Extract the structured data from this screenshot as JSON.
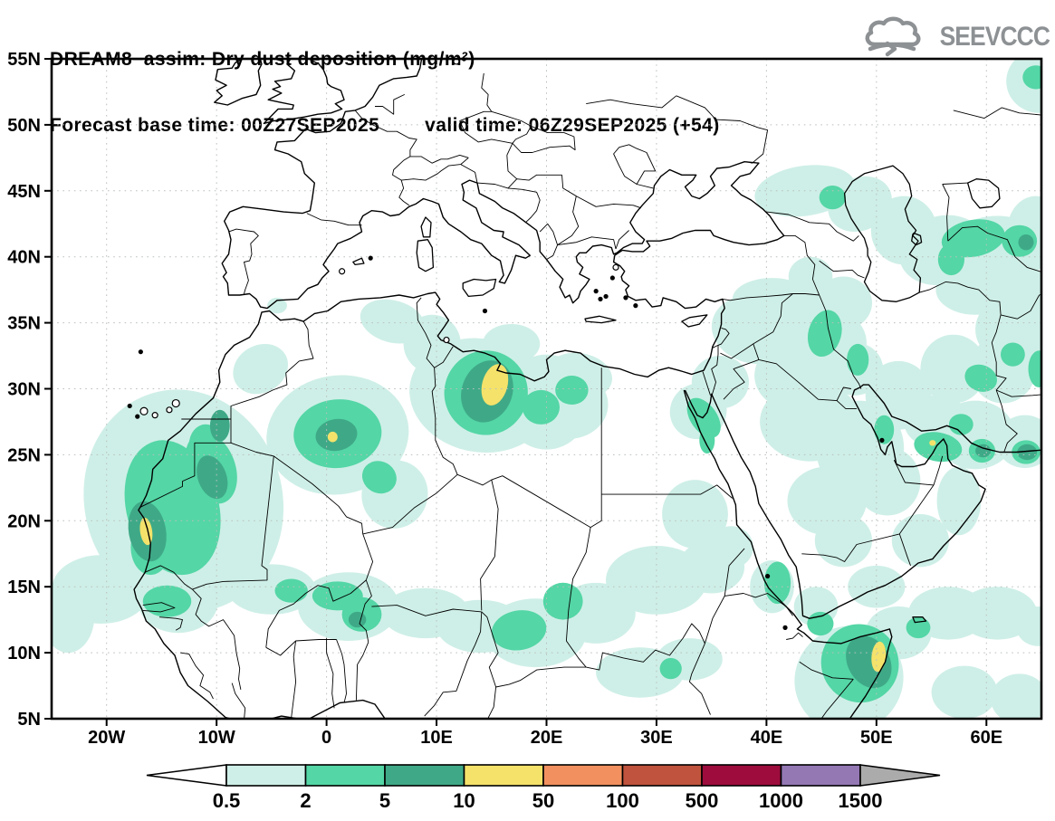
{
  "header": {
    "title_line1": "DREAM8−assim: Dry dust deposition (mg/m²)",
    "forecast_base": "Forecast base time: 00Z27SEP2025",
    "valid_time": "valid time: 06Z29SEP2025 (+54)"
  },
  "logo": {
    "text": "SEEVCCC"
  },
  "chart_data": {
    "type": "heatmap",
    "subtype": "filled-contour-geographic-map",
    "title": "DREAM8−assim: Dry dust deposition (mg/m²)",
    "variable": "Dry dust deposition",
    "units": "mg/m²",
    "forecast_base_time": "00Z27SEP2025",
    "valid_time": "06Z29SEP2025",
    "forecast_hour": "+54",
    "lon_range": [
      -25,
      65
    ],
    "lat_range": [
      5,
      55
    ],
    "grid": {
      "lon_interval": 10,
      "lat_interval": 5,
      "style": "dotted"
    },
    "x_ticks": [
      {
        "value": -20,
        "label": "20W"
      },
      {
        "value": -10,
        "label": "10W"
      },
      {
        "value": 0,
        "label": "0"
      },
      {
        "value": 10,
        "label": "10E"
      },
      {
        "value": 20,
        "label": "20E"
      },
      {
        "value": 30,
        "label": "30E"
      },
      {
        "value": 40,
        "label": "40E"
      },
      {
        "value": 50,
        "label": "50E"
      },
      {
        "value": 60,
        "label": "60E"
      }
    ],
    "y_ticks": [
      {
        "value": 55,
        "label": "55N"
      },
      {
        "value": 50,
        "label": "50N"
      },
      {
        "value": 45,
        "label": "45N"
      },
      {
        "value": 40,
        "label": "40N"
      },
      {
        "value": 35,
        "label": "35N"
      },
      {
        "value": 30,
        "label": "30N"
      },
      {
        "value": 25,
        "label": "25N"
      },
      {
        "value": 20,
        "label": "20N"
      },
      {
        "value": 15,
        "label": "15N"
      },
      {
        "value": 10,
        "label": "10N"
      },
      {
        "value": 5,
        "label": "5N"
      }
    ],
    "colorbar": {
      "boundaries": [
        "0.5",
        "2",
        "5",
        "10",
        "50",
        "100",
        "500",
        "1000",
        "1500"
      ],
      "segment_colors": [
        "#CEEFE7",
        "#54D6A6",
        "#3FA987",
        "#F4E26B",
        "#F2915F",
        "#C0533D",
        "#9D0C3D",
        "#9478B4"
      ],
      "below_color": "#FFFFFF",
      "above_color": "#ABABAB"
    },
    "level_ranges": {
      "level_1": "0.5-2 mg/m²",
      "level_2": "2-5 mg/m²",
      "level_3": "5-10 mg/m²",
      "level_4": "10-50 mg/m²"
    },
    "deposition_regions": {
      "level_1": [
        [
          -13,
          21.5,
          9,
          8.5,
          -15
        ],
        [
          -20.5,
          14.8,
          4.5,
          2.6,
          0
        ],
        [
          -23.5,
          12.8,
          2.4,
          2.8,
          0
        ],
        [
          -6,
          31.5,
          2.6,
          1.8,
          -30
        ],
        [
          6,
          35.1,
          3,
          1.6,
          15
        ],
        [
          9.6,
          33.4,
          2.6,
          2.2,
          0
        ],
        [
          1,
          26.5,
          6.5,
          4.5,
          -10
        ],
        [
          6.2,
          22,
          3,
          2.6,
          20
        ],
        [
          14,
          29.5,
          6.5,
          4.3,
          10
        ],
        [
          20,
          29,
          4,
          3.6,
          0
        ],
        [
          23,
          31,
          3,
          1.7,
          10
        ],
        [
          22,
          28.8,
          3.6,
          2.6,
          0
        ],
        [
          16.8,
          33.4,
          2.6,
          1.5,
          0
        ],
        [
          -13.5,
          13.8,
          3.6,
          2.3,
          0
        ],
        [
          -5,
          14.8,
          4,
          1.9,
          0
        ],
        [
          2,
          13.5,
          4.6,
          2.6,
          0
        ],
        [
          9,
          13,
          4,
          1.9,
          0
        ],
        [
          14,
          12,
          4,
          2,
          0
        ],
        [
          19,
          11.5,
          4.6,
          2.6,
          0
        ],
        [
          24.5,
          13,
          3.6,
          2.3,
          0
        ],
        [
          30,
          15.5,
          4.6,
          2.6,
          0
        ],
        [
          35,
          16.5,
          3,
          2,
          0
        ],
        [
          28.5,
          8.5,
          4,
          1.9,
          0
        ],
        [
          33,
          9.5,
          3,
          1.6,
          0
        ],
        [
          33.5,
          20.5,
          3,
          2.6,
          0
        ],
        [
          36.8,
          18,
          2,
          1.6,
          0
        ],
        [
          33.8,
          28.3,
          2.6,
          2.1,
          -30
        ],
        [
          35.8,
          30.5,
          2.6,
          2,
          0
        ],
        [
          39,
          34.5,
          4,
          2.6,
          10
        ],
        [
          44,
          35.5,
          3,
          2,
          0
        ],
        [
          45.5,
          33.5,
          3.6,
          2.6,
          0
        ],
        [
          48,
          31.5,
          2.6,
          2,
          0
        ],
        [
          42.5,
          31,
          3.6,
          2.6,
          0
        ],
        [
          44,
          27.5,
          4.6,
          3,
          0
        ],
        [
          48.5,
          25.5,
          4,
          3.6,
          0
        ],
        [
          51,
          23,
          3,
          2.6,
          0
        ],
        [
          45.5,
          21.5,
          3.6,
          2.6,
          0
        ],
        [
          47,
          18.5,
          2.6,
          2,
          0
        ],
        [
          54,
          18.5,
          2.6,
          2,
          0
        ],
        [
          57.5,
          21.5,
          2,
          2.6,
          0
        ],
        [
          50,
          15,
          2.6,
          1.6,
          0
        ],
        [
          44.5,
          13.5,
          2,
          1.5,
          0
        ],
        [
          40.5,
          15,
          2,
          2,
          0
        ],
        [
          47.5,
          8,
          5,
          4,
          -30
        ],
        [
          52,
          11.5,
          3,
          2,
          0
        ],
        [
          56.5,
          13,
          3.6,
          2,
          0
        ],
        [
          61,
          13,
          3.6,
          2,
          0
        ],
        [
          64.7,
          12,
          2,
          1.5,
          0
        ],
        [
          58,
          7,
          3,
          2,
          0
        ],
        [
          63,
          6.5,
          2.6,
          1.9,
          0
        ],
        [
          52,
          29.5,
          3,
          2.6,
          0
        ],
        [
          55.5,
          27.5,
          3,
          2,
          0
        ],
        [
          59,
          26.5,
          3.6,
          2.6,
          0
        ],
        [
          63.5,
          26,
          2.6,
          2,
          0
        ],
        [
          57,
          31.5,
          3,
          2.6,
          0
        ],
        [
          61.5,
          31.5,
          3,
          2.6,
          0
        ],
        [
          64.5,
          33.5,
          2.6,
          2.6,
          0
        ],
        [
          61,
          34.5,
          2,
          2,
          0
        ],
        [
          47,
          36.5,
          2.6,
          2,
          0
        ],
        [
          44,
          38.5,
          2,
          1.5,
          0
        ],
        [
          43.5,
          45,
          4.6,
          1.9,
          -8
        ],
        [
          48.5,
          44,
          3,
          2,
          -25
        ],
        [
          52.5,
          42,
          3,
          2.6,
          0
        ],
        [
          56,
          40.5,
          4,
          2.6,
          -15
        ],
        [
          61,
          40.5,
          4.6,
          2.6,
          0
        ],
        [
          64.5,
          42,
          2.6,
          2.6,
          0
        ],
        [
          59,
          37.5,
          3.6,
          1.9,
          0
        ],
        [
          64,
          37,
          2.6,
          2,
          0
        ],
        [
          64.8,
          53.3,
          3,
          2.4,
          0
        ],
        [
          40.5,
          36.8,
          3.6,
          1.6,
          0
        ],
        [
          -4.5,
          36.3,
          0.9,
          0.6,
          0
        ]
      ],
      "level_2": [
        [
          -14,
          21,
          4.2,
          5.2,
          -15
        ],
        [
          -10.5,
          24,
          2.2,
          2.8,
          -20
        ],
        [
          -16,
          18,
          1.8,
          2.1,
          0
        ],
        [
          -14.5,
          13.9,
          2.2,
          1.2,
          0
        ],
        [
          -11,
          25.8,
          1.5,
          1.5,
          0
        ],
        [
          1,
          26.6,
          4,
          2.6,
          -5
        ],
        [
          4.8,
          23.3,
          1.6,
          1.2,
          30
        ],
        [
          14.5,
          29.7,
          3.8,
          3.2,
          15
        ],
        [
          19.5,
          28.6,
          1.7,
          1.3,
          0
        ],
        [
          22.3,
          29.9,
          1.5,
          1.1,
          0
        ],
        [
          1,
          14.3,
          2.3,
          1.1,
          0
        ],
        [
          3.2,
          12.9,
          1.8,
          1.3,
          0
        ],
        [
          -3.2,
          14.7,
          1.5,
          0.9,
          0
        ],
        [
          17.5,
          11.7,
          2.5,
          1.5,
          -10
        ],
        [
          21.5,
          13.9,
          1.8,
          1.4,
          0
        ],
        [
          31.3,
          8.8,
          1,
          0.8,
          0
        ],
        [
          34.3,
          27.8,
          1.2,
          1.7,
          -35
        ],
        [
          34.6,
          26.1,
          0.7,
          1,
          0
        ],
        [
          45.3,
          34.2,
          1.5,
          1.8,
          15
        ],
        [
          48.3,
          32.2,
          1,
          1.2,
          0
        ],
        [
          55.6,
          25.6,
          2.2,
          1.1,
          10
        ],
        [
          50.7,
          26.9,
          0.9,
          1.1,
          0
        ],
        [
          59.6,
          25.3,
          1.2,
          0.9,
          0
        ],
        [
          63.6,
          25.2,
          1.3,
          0.9,
          0
        ],
        [
          59.5,
          30.8,
          1.5,
          1,
          20
        ],
        [
          64.8,
          31.5,
          1,
          1.4,
          0
        ],
        [
          62.4,
          32.6,
          1.1,
          0.9,
          0
        ],
        [
          46,
          44.5,
          1.2,
          0.9,
          0
        ],
        [
          58.8,
          41.4,
          2.9,
          1.4,
          -10
        ],
        [
          56.8,
          39.8,
          1.2,
          1.2,
          0
        ],
        [
          63,
          41.2,
          1.6,
          1.2,
          0
        ],
        [
          64.5,
          53.6,
          1.2,
          0.9,
          0
        ],
        [
          48.5,
          9.2,
          3.5,
          3,
          -35
        ],
        [
          44.9,
          12.2,
          1.2,
          0.9,
          0
        ],
        [
          53.8,
          11.9,
          1.1,
          0.8,
          0
        ],
        [
          41,
          15.3,
          1.2,
          1.6,
          0
        ],
        [
          57.7,
          27.3,
          1.1,
          0.8,
          0
        ]
      ],
      "level_3": [
        [
          -16.3,
          19.2,
          1.7,
          2.3,
          -10
        ],
        [
          -10.4,
          23.3,
          1.3,
          1.7,
          -20
        ],
        [
          -9.7,
          27.2,
          0.9,
          1.2,
          0
        ],
        [
          0.9,
          26.5,
          1.9,
          1.2,
          -10
        ],
        [
          14.6,
          29.8,
          2.3,
          2.4,
          20
        ],
        [
          2.8,
          12.5,
          0.8,
          0.6,
          0
        ],
        [
          49.3,
          9.3,
          1.9,
          2.1,
          -30
        ],
        [
          63.6,
          41.1,
          0.7,
          0.6,
          0
        ],
        [
          59.7,
          25.3,
          0.7,
          0.5,
          0
        ],
        [
          63.7,
          25.2,
          0.9,
          0.6,
          0
        ]
      ],
      "level_4": [
        [
          -16.4,
          19.2,
          0.55,
          1.05,
          -8
        ],
        [
          0.55,
          26.35,
          0.45,
          0.4,
          0
        ],
        [
          15.3,
          30.3,
          1.15,
          1.6,
          15
        ],
        [
          50.2,
          9.7,
          0.65,
          1.15,
          5
        ],
        [
          55.1,
          25.9,
          0.3,
          0.22,
          0
        ]
      ]
    }
  }
}
